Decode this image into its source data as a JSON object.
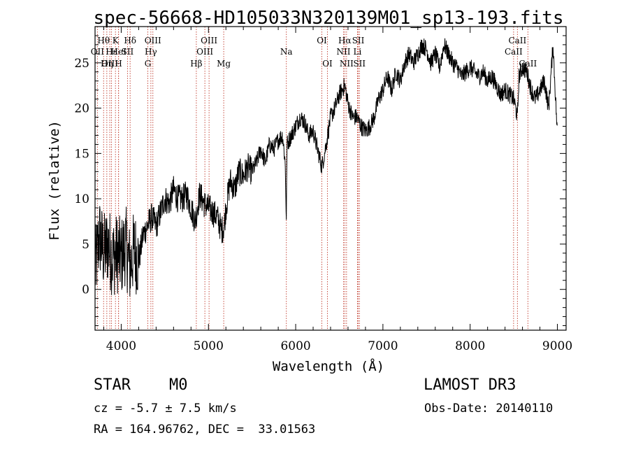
{
  "chart_data": {
    "type": "line",
    "title": "spec-56668-HD105033N320139M01_sp13-193.fits",
    "xlabel": "Wavelength (Å)",
    "ylabel": "Flux (relative)",
    "xlim": [
      3700,
      9100
    ],
    "ylim": [
      -4.5,
      29
    ],
    "xticks": [
      4000,
      5000,
      6000,
      7000,
      8000,
      9000
    ],
    "yticks": [
      0,
      5,
      10,
      15,
      20,
      25
    ],
    "series": [
      {
        "name": "spectrum",
        "color": "#000000",
        "x": [
          3700,
          3750,
          3800,
          3850,
          3900,
          3950,
          4000,
          4050,
          4100,
          4150,
          4200,
          4250,
          4300,
          4350,
          4400,
          4450,
          4500,
          4550,
          4600,
          4650,
          4700,
          4750,
          4800,
          4850,
          4880,
          4900,
          4950,
          5000,
          5050,
          5100,
          5150,
          5180,
          5200,
          5250,
          5300,
          5350,
          5400,
          5450,
          5500,
          5550,
          5600,
          5650,
          5700,
          5750,
          5800,
          5850,
          5880,
          5893,
          5900,
          5950,
          6000,
          6050,
          6100,
          6150,
          6200,
          6250,
          6300,
          6350,
          6400,
          6450,
          6500,
          6563,
          6600,
          6650,
          6700,
          6750,
          6800,
          6850,
          6900,
          6950,
          7000,
          7050,
          7100,
          7150,
          7200,
          7250,
          7300,
          7350,
          7400,
          7450,
          7500,
          7550,
          7600,
          7650,
          7700,
          7750,
          7800,
          7850,
          7900,
          7950,
          8000,
          8050,
          8100,
          8150,
          8200,
          8250,
          8300,
          8350,
          8400,
          8450,
          8500,
          8542,
          8560,
          8600,
          8650,
          8700,
          8750,
          8800,
          8850,
          8900,
          8950,
          9000
        ],
        "y": [
          2,
          6,
          4,
          5,
          3.5,
          4,
          3.5,
          5,
          2.5,
          4.5,
          3,
          6,
          7,
          8,
          7,
          8.5,
          10,
          9.5,
          11,
          10,
          10,
          10.5,
          9,
          7.5,
          9.5,
          10.5,
          9.5,
          9,
          8.5,
          8,
          6.5,
          7,
          9,
          12,
          11,
          13,
          12.5,
          13.5,
          13,
          14,
          15.5,
          14,
          16,
          15.5,
          16.5,
          17,
          14,
          7.5,
          16,
          17,
          18,
          19,
          18.5,
          17,
          17.5,
          15.5,
          13.5,
          16,
          19,
          20,
          21.5,
          22.5,
          20.5,
          19,
          19,
          18,
          17.5,
          18,
          19,
          21,
          22,
          23.5,
          22,
          24,
          23,
          25,
          26,
          25,
          26,
          27,
          26.5,
          25,
          26,
          24.5,
          27,
          26,
          25,
          24.5,
          23.5,
          24,
          24.5,
          24,
          23.5,
          24,
          23,
          23.5,
          22.5,
          21.5,
          22,
          21.5,
          21,
          19,
          23.5,
          24.5,
          24,
          22,
          21,
          22,
          23,
          20,
          27,
          17
        ]
      }
    ],
    "line_ids": [
      {
        "label": "Hθ",
        "x": 3798,
        "row": 1
      },
      {
        "label": "OII",
        "x": 3727,
        "row": 2
      },
      {
        "label": "OIII",
        "x": 3869,
        "row": 3
      },
      {
        "label": "Hε",
        "x": 3889,
        "row": 2
      },
      {
        "label": "Hη",
        "x": 3835,
        "row": 3
      },
      {
        "label": "K",
        "x": 3934,
        "row": 1
      },
      {
        "label": "HeI",
        "x": 3970,
        "row": 2
      },
      {
        "label": "H",
        "x": 3969,
        "row": 3
      },
      {
        "label": "Hδ",
        "x": 4102,
        "row": 1
      },
      {
        "label": "SII",
        "x": 4072,
        "row": 2
      },
      {
        "label": "OIII",
        "x": 4363,
        "row": 1
      },
      {
        "label": "Hγ",
        "x": 4340,
        "row": 2
      },
      {
        "label": "G",
        "x": 4305,
        "row": 3
      },
      {
        "label": "OIII",
        "x": 5007,
        "row": 1
      },
      {
        "label": "OIII",
        "x": 4959,
        "row": 2
      },
      {
        "label": "Hβ",
        "x": 4861,
        "row": 3
      },
      {
        "label": "Mg",
        "x": 5175,
        "row": 3
      },
      {
        "label": "Na",
        "x": 5893,
        "row": 2
      },
      {
        "label": "OI",
        "x": 6300,
        "row": 1
      },
      {
        "label": "OI",
        "x": 6364,
        "row": 3
      },
      {
        "label": "Hα",
        "x": 6563,
        "row": 1
      },
      {
        "label": "NII",
        "x": 6548,
        "row": 2
      },
      {
        "label": "NII",
        "x": 6583,
        "row": 3
      },
      {
        "label": "SII",
        "x": 6717,
        "row": 1
      },
      {
        "label": "Li",
        "x": 6708,
        "row": 2
      },
      {
        "label": "SII",
        "x": 6731,
        "row": 3
      },
      {
        "label": "CaII",
        "x": 8542,
        "row": 1
      },
      {
        "label": "CaII",
        "x": 8498,
        "row": 2
      },
      {
        "label": "CaII",
        "x": 8662,
        "row": 3
      }
    ],
    "line_color": "#c0392b"
  },
  "info": {
    "class_label": "STAR",
    "subclass": "M0",
    "survey": "LAMOST DR3",
    "cz": "cz = -5.7 ± 7.5 km/s",
    "obs_date": "Obs-Date: 20140110",
    "coords": "RA = 164.96762, DEC =  33.01563"
  }
}
